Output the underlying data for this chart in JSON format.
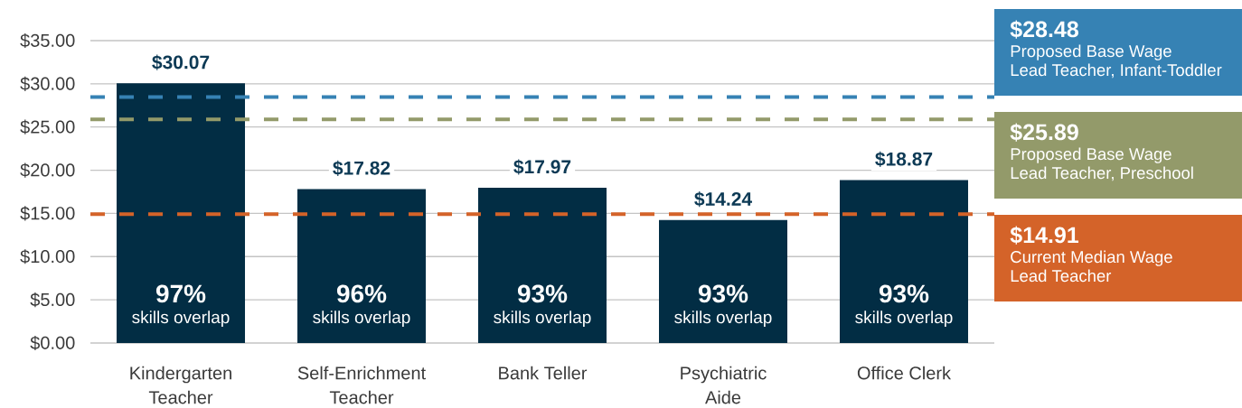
{
  "chart_data": {
    "type": "bar",
    "categories": [
      "Kindergarten\nTeacher",
      "Self-Enrichment\nTeacher",
      "Bank Teller",
      "Psychiatric\nAide",
      "Office Clerk"
    ],
    "values": [
      30.07,
      17.82,
      17.97,
      14.24,
      18.87
    ],
    "color": "#022d44",
    "value_labels": [
      "$30.07",
      "$17.82",
      "$17.97",
      "$14.24",
      "$18.87"
    ],
    "ylim": [
      0,
      35
    ],
    "yticks": [
      {
        "value": 0,
        "label": "$0.00"
      },
      {
        "value": 5,
        "label": "$5.00"
      },
      {
        "value": 10,
        "label": "$10.00"
      },
      {
        "value": 15,
        "label": "$15.00"
      },
      {
        "value": 20,
        "label": "$20.00"
      },
      {
        "value": 25,
        "label": "$25.00"
      },
      {
        "value": 30,
        "label": "$30.00"
      },
      {
        "value": 35,
        "label": "$35.00"
      }
    ],
    "grid": "y",
    "ref_lines": [
      {
        "axis": "y",
        "value": 28.48,
        "label": "$28.48",
        "color": "#3682b4",
        "line_style": "dashed"
      },
      {
        "axis": "y",
        "value": 25.89,
        "label": "$25.89",
        "color": "#939a6a",
        "line_style": "dashed"
      },
      {
        "axis": "y",
        "value": 14.91,
        "label": "$14.91",
        "color": "#d46329",
        "line_style": "dashed"
      }
    ],
    "annotations": [
      "97%",
      "skills overlap",
      "96%",
      "skills overlap",
      "93%",
      "skills overlap",
      "93%",
      "skills overlap",
      "93%",
      "skills overlap",
      "Proposed Base Wage",
      "Lead Teacher, Infant-Toddler",
      "Proposed Base Wage",
      "Lead Teacher, Preschool",
      "Current Median Wage",
      "Lead Teacher"
    ]
  }
}
